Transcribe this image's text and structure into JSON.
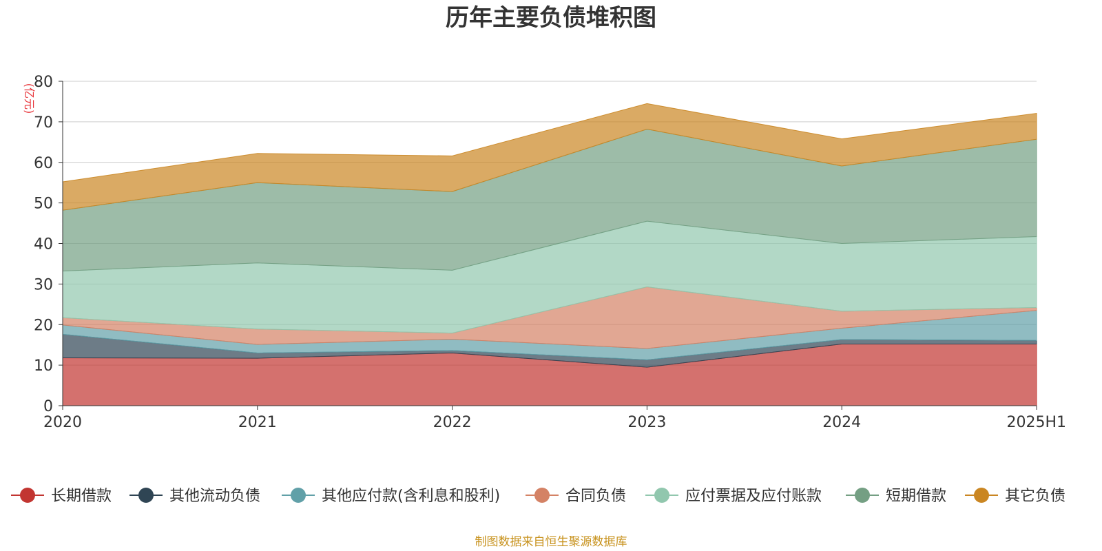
{
  "chart_data": {
    "type": "area",
    "stacked": true,
    "title": "历年主要负债堆积图",
    "unit_label": "(亿元)",
    "x": [
      "2020",
      "2021",
      "2022",
      "2023",
      "2024",
      "2025H1"
    ],
    "y_ticks": [
      "0",
      "10",
      "20",
      "30",
      "40",
      "50",
      "60",
      "70",
      "80"
    ],
    "ylim": [
      0,
      80
    ],
    "grid": true,
    "legend_position": "bottom",
    "series": [
      {
        "name": "长期借款",
        "color": "#c23531",
        "values": [
          11.8,
          11.7,
          13.0,
          9.5,
          15.2,
          15.2
        ]
      },
      {
        "name": "其他流动负债",
        "color": "#2f4554",
        "values": [
          5.8,
          1.3,
          0.6,
          1.8,
          1.1,
          0.9
        ]
      },
      {
        "name": "其他应付款(含利息和股利)",
        "color": "#61a0a8",
        "values": [
          2.3,
          2.1,
          2.8,
          2.8,
          2.8,
          7.4
        ]
      },
      {
        "name": "合同负债",
        "color": "#d48265",
        "values": [
          1.8,
          3.8,
          1.5,
          15.2,
          4.2,
          0.7
        ]
      },
      {
        "name": "应付票据及应付账款",
        "color": "#91c7ae",
        "values": [
          11.5,
          16.3,
          15.5,
          16.2,
          16.7,
          17.5
        ]
      },
      {
        "name": "短期借款",
        "color": "#749f83",
        "values": [
          15.0,
          19.8,
          19.4,
          22.7,
          19.1,
          24.0
        ]
      },
      {
        "name": "其它负债",
        "color": "#ca8622",
        "values": [
          7.0,
          7.2,
          8.8,
          6.3,
          6.7,
          6.4
        ]
      }
    ]
  },
  "footer": "制图数据来自恒生聚源数据库"
}
